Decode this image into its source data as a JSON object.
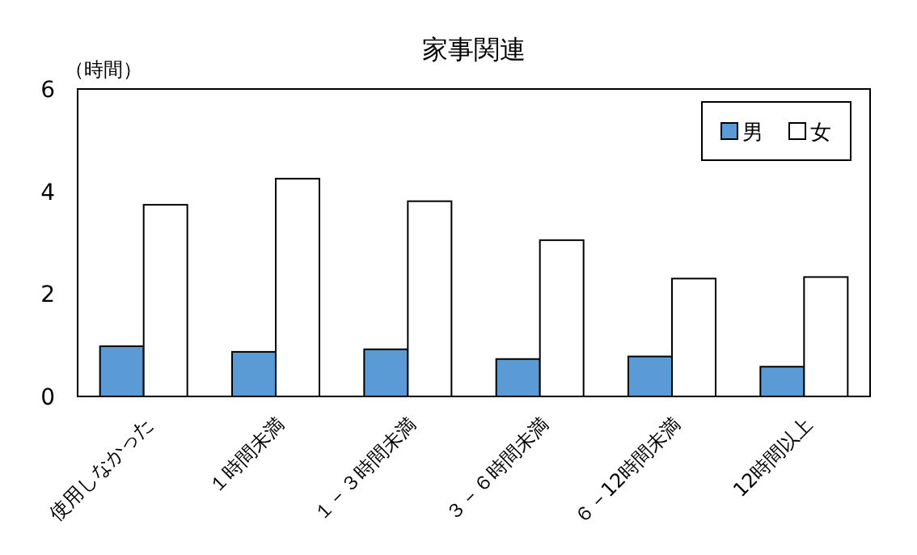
{
  "chart_data": {
    "type": "bar",
    "title": "家事関連",
    "ylabel": "（時間）",
    "categories": [
      "使用しなかった",
      "１時間未満",
      "１－３時間未満",
      "３－６時間未満",
      "６－12時間未満",
      "12時間以上"
    ],
    "series": [
      {
        "name": "男",
        "color": "#5b9bd5",
        "values": [
          0.98,
          0.87,
          0.92,
          0.73,
          0.78,
          0.58
        ]
      },
      {
        "name": "女",
        "color": "#ffffff",
        "values": [
          3.74,
          4.25,
          3.81,
          3.05,
          2.3,
          2.33
        ]
      }
    ],
    "ylim": [
      0,
      6
    ],
    "yticks": [
      0,
      2,
      4,
      6
    ],
    "legend": "top right",
    "grid": false
  }
}
